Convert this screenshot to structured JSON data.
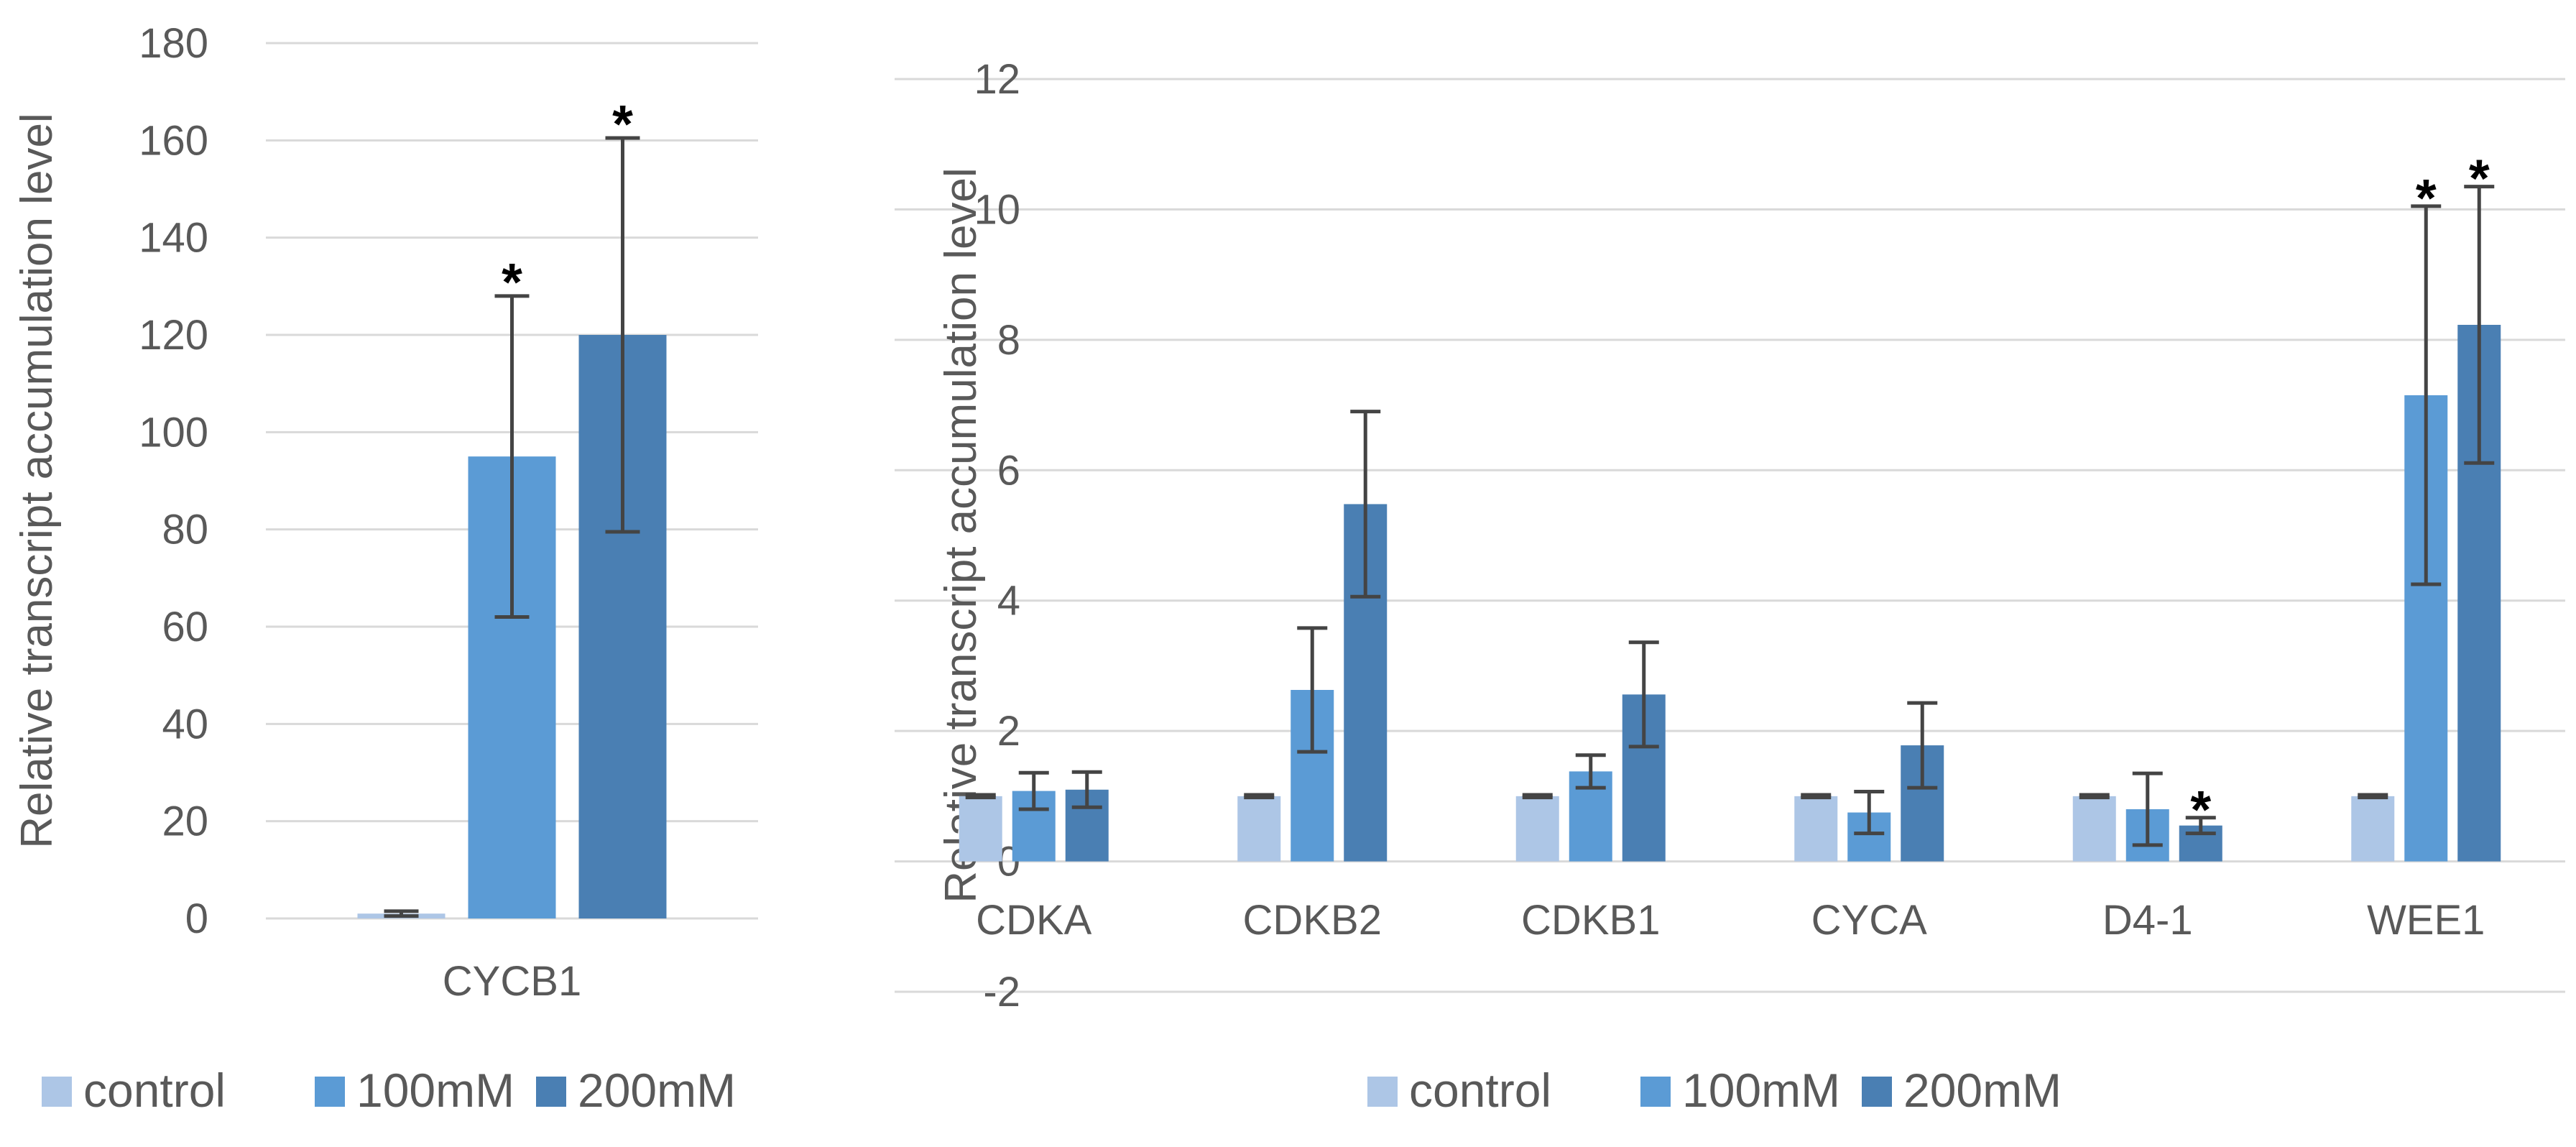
{
  "colors": {
    "control": "#adc6e6",
    "100mM": "#5b9bd5",
    "200mM": "#4a7fb3",
    "error": "#444444",
    "grid": "#d9d9d9"
  },
  "chart_data": [
    {
      "type": "bar",
      "title": "",
      "xlabel": "",
      "ylabel": "Relative transcript accumulation level",
      "ylim": [
        0,
        180
      ],
      "yticks": [
        0,
        20,
        40,
        60,
        80,
        100,
        120,
        140,
        160,
        180
      ],
      "ytick_labels": [
        "0",
        "20",
        "40",
        "60",
        "80",
        "100",
        "120",
        "140",
        "160",
        "180"
      ],
      "categories": [
        "CYCB1"
      ],
      "grid": true,
      "legend_position": "bottom",
      "series": [
        {
          "name": "control",
          "values": [
            1
          ],
          "errors": [
            0.5
          ],
          "significant": [
            false
          ]
        },
        {
          "name": "100mM",
          "values": [
            95
          ],
          "errors": [
            33
          ],
          "significant": [
            true
          ]
        },
        {
          "name": "200mM",
          "values": [
            120
          ],
          "errors": [
            40.5
          ],
          "significant": [
            true
          ]
        }
      ],
      "significance_marker": "*"
    },
    {
      "type": "bar",
      "title": "",
      "xlabel": "",
      "ylabel": "Relative transcript accumulation level",
      "ylim": [
        -2,
        12
      ],
      "yticks": [
        -2,
        0,
        2,
        4,
        6,
        8,
        10,
        12
      ],
      "ytick_labels": [
        "-2",
        "0",
        "2",
        "4",
        "6",
        "8",
        "10",
        "12"
      ],
      "categories": [
        "CDKA",
        "CDKB2",
        "CDKB1",
        "CYCA",
        "D4-1",
        "WEE1"
      ],
      "grid": true,
      "legend_position": "bottom",
      "series": [
        {
          "name": "control",
          "values": [
            1,
            1,
            1,
            1,
            1,
            1
          ],
          "errors": [
            0.02,
            0.02,
            0.02,
            0.02,
            0.02,
            0.02
          ],
          "significant": [
            false,
            false,
            false,
            false,
            false,
            false
          ]
        },
        {
          "name": "100mM",
          "values": [
            1.08,
            2.63,
            1.38,
            0.75,
            0.8,
            7.15
          ],
          "errors": [
            0.28,
            0.95,
            0.25,
            0.32,
            0.55,
            2.9
          ],
          "significant": [
            false,
            false,
            false,
            false,
            false,
            true
          ]
        },
        {
          "name": "200mM",
          "values": [
            1.1,
            5.48,
            2.56,
            1.78,
            0.55,
            8.23
          ],
          "errors": [
            0.27,
            1.42,
            0.8,
            0.65,
            0.12,
            2.12
          ],
          "significant": [
            false,
            false,
            false,
            false,
            true,
            true
          ]
        }
      ],
      "significance_marker": "*"
    }
  ]
}
